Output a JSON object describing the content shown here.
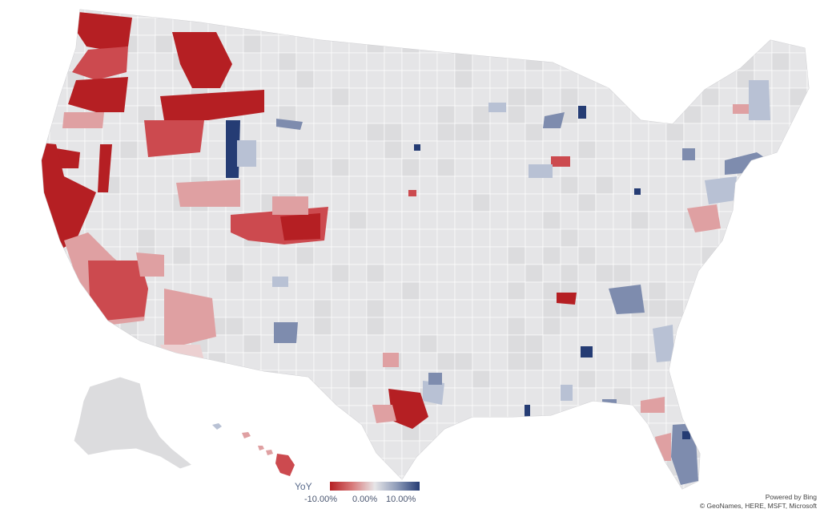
{
  "map": {
    "colors": {
      "land": "#e5e5e7",
      "land_alt": "#dcdcde",
      "border": "#ffffff",
      "neg_strong": "#b51f23",
      "neg_medium": "#cc4a4f",
      "neg_light": "#dfa0a2",
      "neutral": "#e7e6e8",
      "pos_light": "#b8c1d4",
      "pos_medium": "#7e8cae",
      "pos_strong": "#253c74"
    }
  },
  "legend": {
    "title": "YoY",
    "min_label": "-10.00%",
    "mid_label": "0.00%",
    "max_label": "10.00%"
  },
  "attribution": {
    "line1": "Powered by Bing",
    "line2": "© GeoNames, HERE, MSFT, Microsoft"
  }
}
